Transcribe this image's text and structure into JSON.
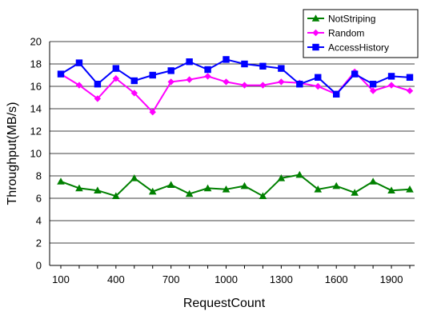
{
  "chart_data": {
    "type": "line",
    "xlabel": "RequestCount",
    "ylabel": "Throughput(MB/s)",
    "xlim": [
      100,
      2000
    ],
    "ylim": [
      0,
      20
    ],
    "y_ticks": [
      0,
      2,
      4,
      6,
      8,
      10,
      12,
      14,
      16,
      18,
      20
    ],
    "x_tick_labels": [
      "100",
      "400",
      "700",
      "1000",
      "1300",
      "1600",
      "1900"
    ],
    "x_tick_values": [
      100,
      400,
      700,
      1000,
      1300,
      1600,
      1900
    ],
    "grid": "horizontal",
    "legend": "top-right",
    "x": [
      100,
      200,
      300,
      400,
      500,
      600,
      700,
      800,
      900,
      1000,
      1100,
      1200,
      1300,
      1400,
      1500,
      1600,
      1700,
      1800,
      1900,
      2000
    ],
    "series": [
      {
        "name": "NotStriping",
        "color": "#008000",
        "marker": "triangle",
        "values": [
          7.5,
          6.9,
          6.7,
          6.2,
          7.8,
          6.6,
          7.2,
          6.4,
          6.9,
          6.8,
          7.1,
          6.2,
          7.8,
          8.1,
          6.8,
          7.1,
          6.5,
          7.5,
          6.7,
          6.8
        ]
      },
      {
        "name": "Random",
        "color": "#ff00ff",
        "marker": "diamond",
        "values": [
          17.1,
          16.1,
          14.9,
          16.7,
          15.4,
          13.7,
          16.4,
          16.6,
          16.9,
          16.4,
          16.1,
          16.1,
          16.4,
          16.3,
          16.0,
          15.3,
          17.3,
          15.6,
          16.1,
          15.6
        ]
      },
      {
        "name": "AccessHistory",
        "color": "#0000ff",
        "marker": "square",
        "values": [
          17.1,
          18.1,
          16.2,
          17.6,
          16.5,
          17.0,
          17.4,
          18.2,
          17.5,
          18.4,
          18.0,
          17.8,
          17.6,
          16.2,
          16.8,
          15.3,
          17.1,
          16.2,
          16.9,
          16.8
        ]
      }
    ]
  }
}
